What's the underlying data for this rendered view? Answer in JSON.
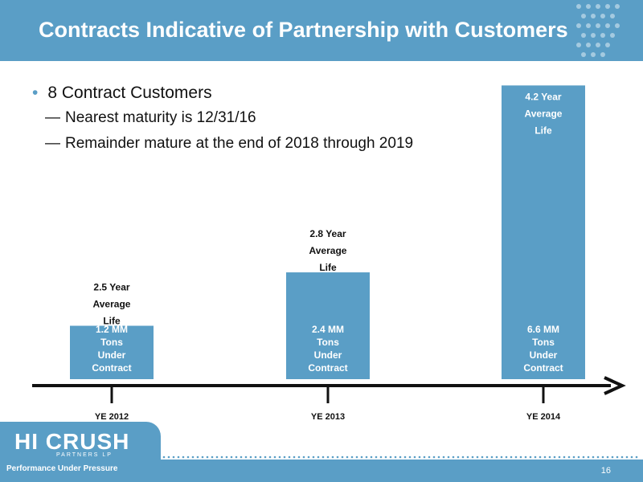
{
  "header": {
    "title": "Contracts Indicative of Partnership with Customers"
  },
  "bullets": {
    "main": "8 Contract Customers",
    "sub": [
      "Nearest maturity is 12/31/16",
      "Remainder mature at the end of 2018 through 2019"
    ]
  },
  "footer": {
    "logo": "HI CRUSH",
    "logo_sub": "PARTNERS LP",
    "tagline": "Performance Under Pressure",
    "page_number": "16"
  },
  "colors": {
    "accent": "#5a9ec6",
    "bar": "#5a9ec6",
    "axis": "#111111"
  },
  "chart_data": {
    "type": "bar",
    "categories": [
      "YE 2012",
      "YE 2013",
      "YE 2014"
    ],
    "values": [
      1.2,
      2.4,
      6.6
    ],
    "value_unit": "MM Tons Under Contract",
    "inside_labels": [
      [
        "1.2 MM",
        "Tons",
        "Under",
        "Contract"
      ],
      [
        "2.4 MM",
        "Tons",
        "Under",
        "Contract"
      ],
      [
        "6.6 MM",
        "Tons",
        "Under",
        "Contract"
      ]
    ],
    "top_labels": [
      [
        "2.5 Year",
        "Average",
        "Life"
      ],
      [
        "2.8 Year",
        "Average",
        "Life"
      ],
      [
        "4.2 Year",
        "Average",
        "Life"
      ]
    ],
    "grid": false,
    "legend": "none"
  }
}
